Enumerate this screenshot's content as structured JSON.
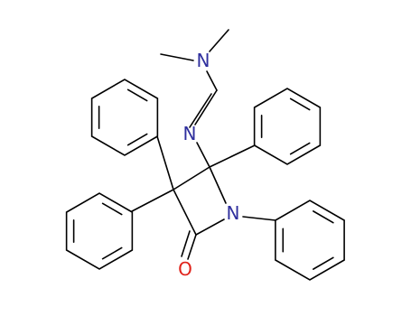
{
  "atoms": {
    "n_dimethyl": "N",
    "n_imine": "N",
    "n_ring": "N",
    "o_carbonyl": "O"
  }
}
